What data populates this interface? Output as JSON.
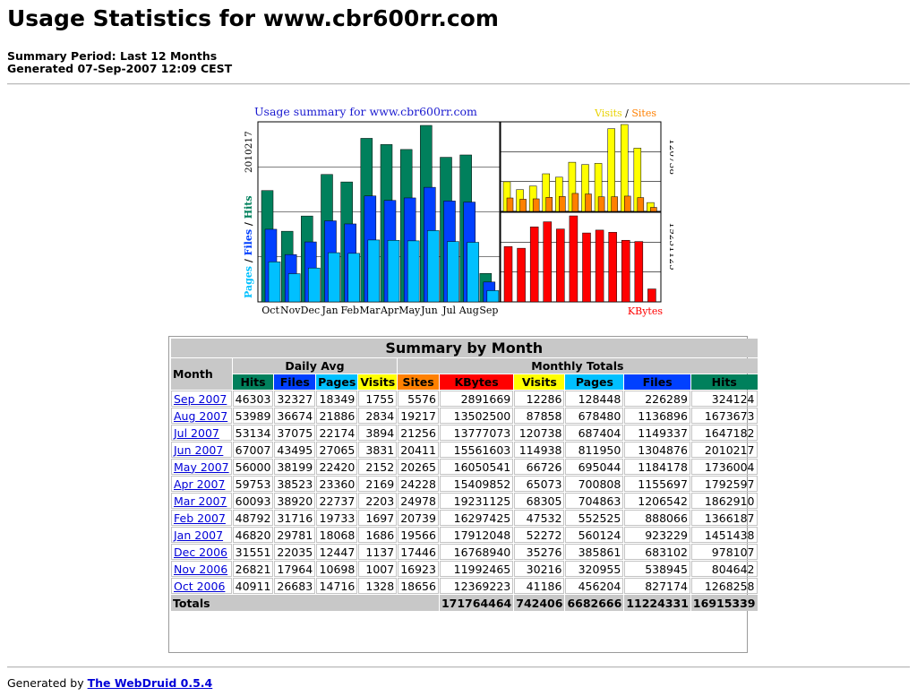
{
  "page": {
    "title": "Usage Statistics for www.cbr600rr.com",
    "summary_period": "Summary Period: Last 12 Months",
    "generated": "Generated 07-Sep-2007 12:09 CEST"
  },
  "colors": {
    "hits": "#00805c",
    "files": "#0040ff",
    "pages": "#00c0ff",
    "visits": "#ffff00",
    "sites": "#ff8000",
    "kbytes": "#ff0000",
    "link": "#0000d8",
    "header_gray": "#c8c8c8"
  },
  "chart_data": [
    {
      "type": "bar",
      "title": "Usage summary for www.cbr600rr.com",
      "ylabel_parts": [
        "Pages",
        "/",
        "Files",
        "/",
        "Hits"
      ],
      "y_max_label": "2010217",
      "ylim": [
        0,
        2010217
      ],
      "categories": [
        "Oct",
        "Nov",
        "Dec",
        "Jan",
        "Feb",
        "Mar",
        "Apr",
        "May",
        "Jun",
        "Jul",
        "Aug",
        "Sep"
      ],
      "series": [
        {
          "name": "Hits",
          "values": [
            1268258,
            804642,
            978107,
            1451438,
            1366187,
            1862910,
            1792597,
            1736004,
            2010217,
            1647182,
            1673673,
            324124
          ]
        },
        {
          "name": "Files",
          "values": [
            827174,
            538945,
            683102,
            923229,
            888066,
            1206542,
            1155697,
            1184178,
            1304876,
            1149337,
            1136896,
            226289
          ]
        },
        {
          "name": "Pages",
          "values": [
            456204,
            320955,
            385861,
            560124,
            552525,
            704863,
            700808,
            695044,
            811950,
            687404,
            678480,
            128448
          ]
        }
      ]
    },
    {
      "type": "bar",
      "legend_parts": [
        "Visits",
        "/",
        "Sites"
      ],
      "y_max_label": "120738",
      "ylim": [
        0,
        120738
      ],
      "categories": [
        "Oct",
        "Nov",
        "Dec",
        "Jan",
        "Feb",
        "Mar",
        "Apr",
        "May",
        "Jun",
        "Jul",
        "Aug",
        "Sep"
      ],
      "series": [
        {
          "name": "Visits",
          "values": [
            41186,
            30216,
            35276,
            52272,
            47532,
            68305,
            65073,
            66726,
            114938,
            120738,
            87858,
            12286
          ]
        },
        {
          "name": "Sites",
          "values": [
            18656,
            16923,
            17446,
            19566,
            20739,
            24978,
            24228,
            20265,
            20411,
            21256,
            19217,
            5576
          ]
        }
      ]
    },
    {
      "type": "bar",
      "xlabel": "KBytes",
      "y_max_label": "19231125",
      "ylim": [
        0,
        19231125
      ],
      "categories": [
        "Oct",
        "Nov",
        "Dec",
        "Jan",
        "Feb",
        "Mar",
        "Apr",
        "May",
        "Jun",
        "Jul",
        "Aug",
        "Sep"
      ],
      "series": [
        {
          "name": "KBytes",
          "values": [
            12369223,
            11992465,
            16768940,
            17912048,
            16297425,
            19231125,
            15409852,
            16050541,
            15561603,
            13777073,
            13502500,
            2891669
          ]
        }
      ]
    }
  ],
  "summary": {
    "caption": "Summary by Month",
    "month_header": "Month",
    "daily_avg_header": "Daily Avg",
    "monthly_totals_header": "Monthly Totals",
    "daily_cols": [
      {
        "label": "Hits",
        "color": "#00805c"
      },
      {
        "label": "Files",
        "color": "#0040ff"
      },
      {
        "label": "Pages",
        "color": "#00c0ff"
      },
      {
        "label": "Visits",
        "color": "#ffff00"
      }
    ],
    "monthly_cols": [
      {
        "label": "Sites",
        "color": "#ff8000"
      },
      {
        "label": "KBytes",
        "color": "#ff0000"
      },
      {
        "label": "Visits",
        "color": "#ffff00"
      },
      {
        "label": "Pages",
        "color": "#00c0ff"
      },
      {
        "label": "Files",
        "color": "#0040ff"
      },
      {
        "label": "Hits",
        "color": "#00805c"
      }
    ],
    "rows": [
      {
        "month": "Sep 2007",
        "values": [
          "46303",
          "32327",
          "18349",
          "1755",
          "5576",
          "2891669",
          "12286",
          "128448",
          "226289",
          "324124"
        ]
      },
      {
        "month": "Aug 2007",
        "values": [
          "53989",
          "36674",
          "21886",
          "2834",
          "19217",
          "13502500",
          "87858",
          "678480",
          "1136896",
          "1673673"
        ]
      },
      {
        "month": "Jul 2007",
        "values": [
          "53134",
          "37075",
          "22174",
          "3894",
          "21256",
          "13777073",
          "120738",
          "687404",
          "1149337",
          "1647182"
        ]
      },
      {
        "month": "Jun 2007",
        "values": [
          "67007",
          "43495",
          "27065",
          "3831",
          "20411",
          "15561603",
          "114938",
          "811950",
          "1304876",
          "2010217"
        ]
      },
      {
        "month": "May 2007",
        "values": [
          "56000",
          "38199",
          "22420",
          "2152",
          "20265",
          "16050541",
          "66726",
          "695044",
          "1184178",
          "1736004"
        ]
      },
      {
        "month": "Apr 2007",
        "values": [
          "59753",
          "38523",
          "23360",
          "2169",
          "24228",
          "15409852",
          "65073",
          "700808",
          "1155697",
          "1792597"
        ]
      },
      {
        "month": "Mar 2007",
        "values": [
          "60093",
          "38920",
          "22737",
          "2203",
          "24978",
          "19231125",
          "68305",
          "704863",
          "1206542",
          "1862910"
        ]
      },
      {
        "month": "Feb 2007",
        "values": [
          "48792",
          "31716",
          "19733",
          "1697",
          "20739",
          "16297425",
          "47532",
          "552525",
          "888066",
          "1366187"
        ]
      },
      {
        "month": "Jan 2007",
        "values": [
          "46820",
          "29781",
          "18068",
          "1686",
          "19566",
          "17912048",
          "52272",
          "560124",
          "923229",
          "1451438"
        ]
      },
      {
        "month": "Dec 2006",
        "values": [
          "31551",
          "22035",
          "12447",
          "1137",
          "17446",
          "16768940",
          "35276",
          "385861",
          "683102",
          "978107"
        ]
      },
      {
        "month": "Nov 2006",
        "values": [
          "26821",
          "17964",
          "10698",
          "1007",
          "16923",
          "11992465",
          "30216",
          "320955",
          "538945",
          "804642"
        ]
      },
      {
        "month": "Oct 2006",
        "values": [
          "40911",
          "26683",
          "14716",
          "1328",
          "18656",
          "12369223",
          "41186",
          "456204",
          "827174",
          "1268258"
        ]
      }
    ],
    "totals": {
      "label": "Totals",
      "values": [
        "171764464",
        "742406",
        "6682666",
        "11224331",
        "16915339"
      ]
    }
  },
  "footer": {
    "prefix": "Generated by",
    "link": "The WebDruid 0.5.4"
  }
}
